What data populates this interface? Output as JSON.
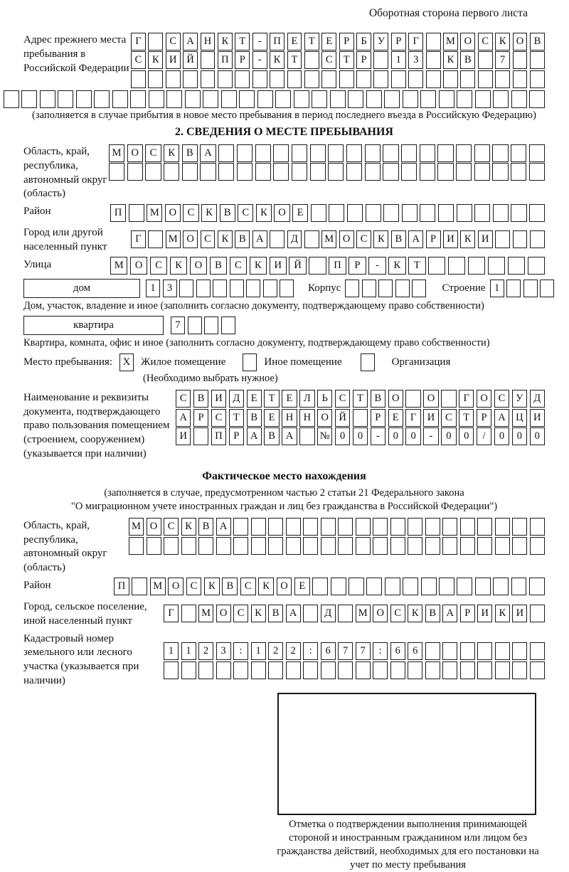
{
  "header": {
    "title": "Оборотная сторона первого листа"
  },
  "prev_address": {
    "label": "Адрес прежнего места пребывания в Российской Федерации",
    "row1": {
      "t": "Г САНКТ-ПЕТЕРБУРГ МОСКОВ",
      "n": 24
    },
    "row2": {
      "t": "СКИЙ ПР-КТ СТР 13 КВ 7",
      "n": 24
    },
    "row3": {
      "t": "",
      "n": 24
    },
    "row4": {
      "t": "",
      "n": 30
    },
    "note": "(заполняется в случае прибытия в новое место пребывания в период последнего въезда в Российскую Федерацию)"
  },
  "section2": {
    "title": "2. СВЕДЕНИЯ О МЕСТЕ ПРЕБЫВАНИЯ",
    "oblast": {
      "label": "Область, край, республика, автономный округ (область)",
      "row1": {
        "t": "МОСКВА",
        "n": 24
      },
      "row2": {
        "t": "",
        "n": 24
      }
    },
    "rayon": {
      "label": "Район",
      "row": {
        "t": "П МОСКВСКОЕ",
        "n": 24
      }
    },
    "gorod": {
      "label": "Город или другой населенный пункт",
      "row": {
        "t": "Г МОСКВА Д МОСКВАРИКИ",
        "n": 24
      }
    },
    "ulitsa": {
      "label": "Улица",
      "row": {
        "t": "МОСКОВСКИЙ ПР-КТ",
        "n": 22
      }
    },
    "dom": {
      "box_label": "дом",
      "cells": {
        "t": "13",
        "n": 9
      },
      "korpus_label": "Корпус",
      "korpus_cells": {
        "t": "",
        "n": 5
      },
      "stroenie_label": "Строение",
      "stroenie_cells": {
        "t": "1",
        "n": 4
      },
      "caption": "Дом, участок, владение и иное (заполнить согласно документу, подтверждающему право собственности)"
    },
    "kvartira": {
      "box_label": "квартира",
      "cells": {
        "t": "7",
        "n": 4
      },
      "caption": "Квартира, комната, офис и иное (заполнить согласно документу, подтверждающему право собственности)"
    },
    "mesto": {
      "label": "Место пребывания:",
      "checked_mark": "X",
      "options": [
        "Жилое помещение",
        "Иное помещение",
        "Организация"
      ],
      "note": "(Необходимо выбрать нужное)"
    },
    "doc": {
      "label": "Наименование и реквизиты документа, подтверждающего право пользования помещением (строением, сооружением) (указывается при наличии)",
      "row1": {
        "t": "СВИДЕТЕЛЬСТВО О ГОСУД",
        "n": 21
      },
      "row2": {
        "t": "АРСТВЕННОЙ РЕГИСТРАЦИ",
        "n": 21
      },
      "row3": {
        "t": "И ПРАВА №00-00-00/000",
        "n": 21
      }
    }
  },
  "fact": {
    "title": "Фактическое место нахождения",
    "note1": "(заполняется в случае, предусмотренном частью 2 статьи 21 Федерального закона",
    "note2": "\"О миграционном учете иностранных граждан и лиц без гражданства в Российской Федерации\")",
    "oblast": {
      "label": "Область, край, республика, автономный округ (область)",
      "row1": {
        "t": "МОСКВА",
        "n": 24
      },
      "row2": {
        "t": "",
        "n": 24
      }
    },
    "rayon": {
      "label": "Район",
      "row": {
        "t": "П МОСКВСКОЕ",
        "n": 24
      }
    },
    "gorod": {
      "label": "Город, сельское поселение, иной населенный пункт",
      "row": {
        "t": "Г МОСКВА Д МОСКВАРИКИ",
        "n": 22
      }
    },
    "kadastr": {
      "label": "Кадастровый номер земельного или лесного участка (указывается при наличии)",
      "row1": {
        "t": "1123:122:677:66",
        "n": 22
      },
      "row2": {
        "t": "",
        "n": 22
      }
    },
    "stamp_caption": "Отметка о подтверждении выполнения принимающей стороной и иностранным гражданином или лицом без гражданства действий, необходимых для его постановки на учет по месту пребывания"
  }
}
